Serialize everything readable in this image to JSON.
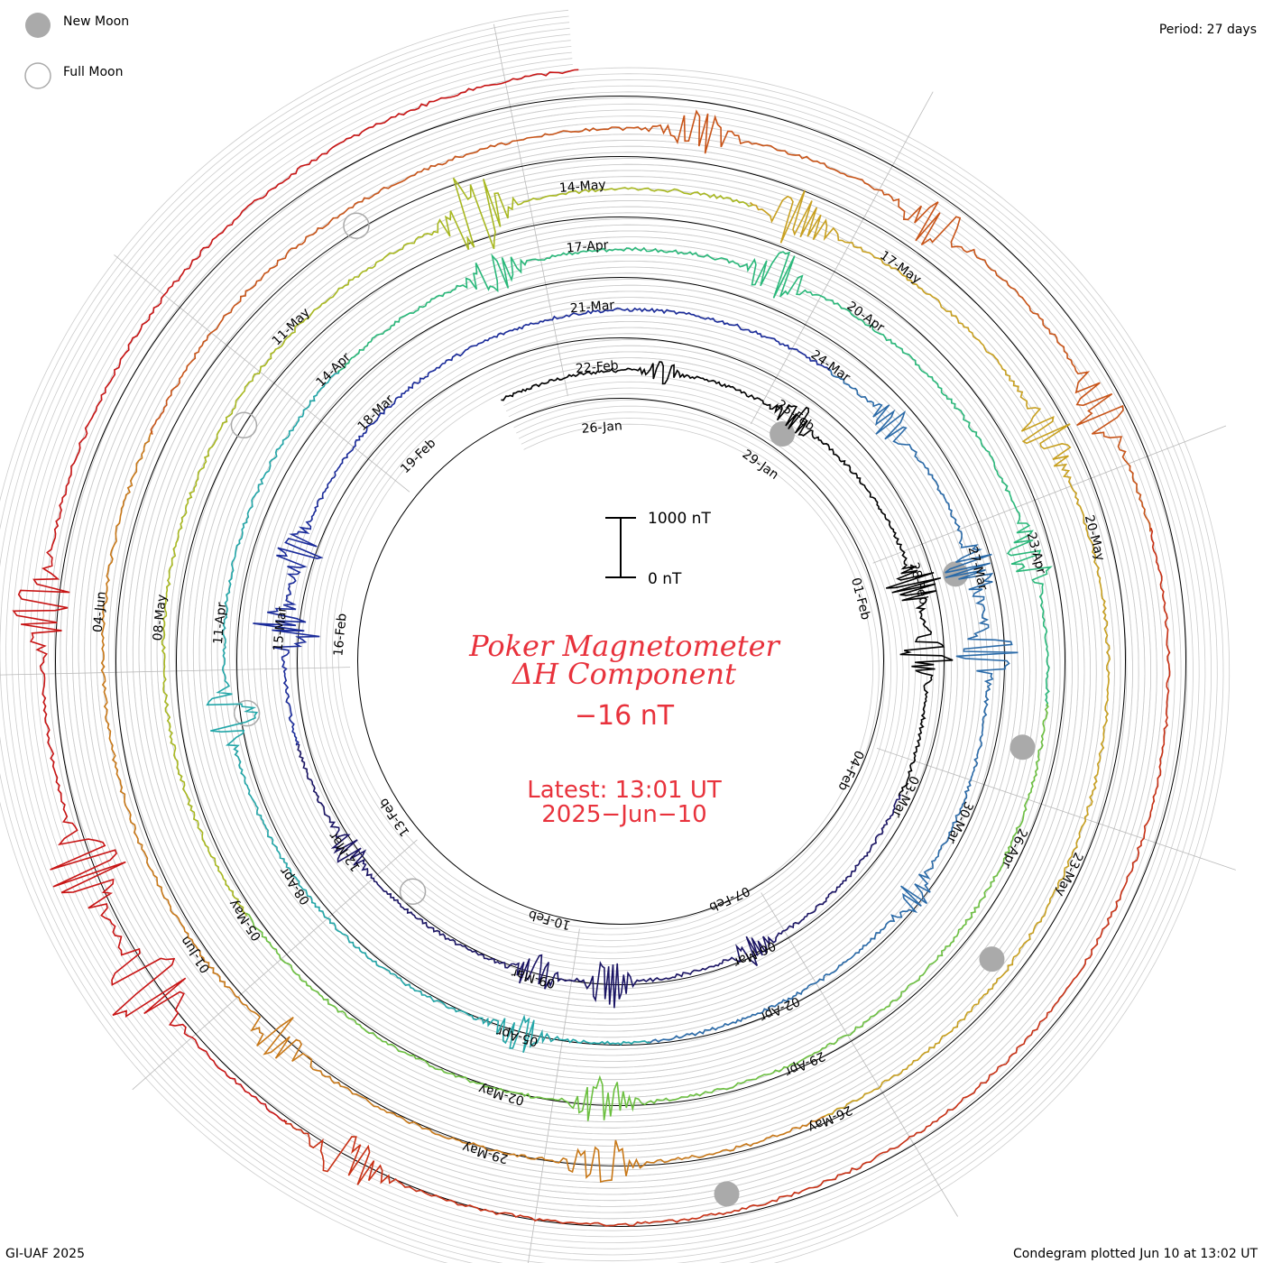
{
  "legend": {
    "new_moon_label": "New Moon",
    "full_moon_label": "Full Moon"
  },
  "period_label": "Period: 27 days",
  "footer_left": "GI-UAF 2025",
  "footer_right": "Condegram plotted Jun 10 at 13:02 UT",
  "chart_data": {
    "type": "spiral-line",
    "title_line1": "Poker Magnetometer",
    "title_line2": "ΔH Component",
    "current_value": "−16 nT",
    "latest_time": "Latest:  13:01 UT",
    "latest_date": "2025−Jun−10",
    "scale_top_label": "1000 nT",
    "scale_bottom_label": "0 nT",
    "period_days": 27,
    "start_date": "2025-01-25",
    "end_date": "2025-06-10",
    "date_labels": [
      "26-Jan",
      "29-Jan",
      "01-Feb",
      "04-Feb",
      "07-Feb",
      "10-Feb",
      "13-Feb",
      "16-Feb",
      "19-Feb",
      "22-Feb",
      "25-Feb",
      "28-Feb",
      "03-Mar",
      "06-Mar",
      "09-Mar",
      "12-Mar",
      "15-Mar",
      "18-Mar",
      "21-Mar",
      "24-Mar",
      "27-Mar",
      "30-Mar",
      "02-Apr",
      "05-Apr",
      "08-Apr",
      "11-Apr",
      "14-Apr",
      "17-Apr",
      "20-Apr",
      "23-Apr",
      "26-Apr",
      "29-Apr",
      "02-May",
      "05-May",
      "08-May",
      "11-May",
      "14-May",
      "17-May",
      "20-May",
      "23-May",
      "26-May",
      "29-May",
      "01-Jun",
      "04-Jun"
    ],
    "colors": [
      "#000000",
      "#1a1464",
      "#1a2b9a",
      "#2a6aa8",
      "#22a6a8",
      "#2ab87a",
      "#6cc040",
      "#a8b820",
      "#c8a020",
      "#c87818",
      "#c85418",
      "#c83014",
      "#c81414"
    ],
    "new_moons": [
      "2025-01-29",
      "2025-02-28",
      "2025-03-29",
      "2025-04-27",
      "2025-05-27"
    ],
    "full_moons": [
      "2025-02-12",
      "2025-03-14",
      "2025-04-13",
      "2025-05-12"
    ],
    "disturbances_nT": [
      {
        "date": "2025-01-27",
        "peak": 180
      },
      {
        "date": "2025-01-29",
        "peak": 260
      },
      {
        "date": "2025-02-01",
        "peak": 420
      },
      {
        "date": "2025-02-02",
        "peak": 380
      },
      {
        "date": "2025-02-07",
        "peak": 200
      },
      {
        "date": "2025-02-09",
        "peak": 380
      },
      {
        "date": "2025-02-10",
        "peak": 300
      },
      {
        "date": "2025-02-13",
        "peak": 220
      },
      {
        "date": "2025-02-16",
        "peak": 480
      },
      {
        "date": "2025-02-17",
        "peak": 350
      },
      {
        "date": "2025-02-26",
        "peak": 260
      },
      {
        "date": "2025-02-28",
        "peak": 400
      },
      {
        "date": "2025-03-01",
        "peak": 440
      },
      {
        "date": "2025-03-04",
        "peak": 260
      },
      {
        "date": "2025-03-09",
        "peak": 300
      },
      {
        "date": "2025-03-14",
        "peak": 380
      },
      {
        "date": "2025-03-20",
        "peak": 300
      },
      {
        "date": "2025-03-23",
        "peak": 420
      },
      {
        "date": "2025-03-27",
        "peak": 320
      },
      {
        "date": "2025-04-04",
        "peak": 380
      },
      {
        "date": "2025-04-16",
        "peak": 620
      },
      {
        "date": "2025-04-19",
        "peak": 420
      },
      {
        "date": "2025-04-22",
        "peak": 350
      },
      {
        "date": "2025-05-01",
        "peak": 380
      },
      {
        "date": "2025-05-04",
        "peak": 340
      },
      {
        "date": "2025-05-15",
        "peak": 320
      },
      {
        "date": "2025-05-17",
        "peak": 380
      },
      {
        "date": "2025-05-19",
        "peak": 420
      },
      {
        "date": "2025-05-30",
        "peak": 360
      },
      {
        "date": "2025-06-01",
        "peak": 640
      },
      {
        "date": "2025-06-02",
        "peak": 560
      },
      {
        "date": "2025-06-04",
        "peak": 420
      }
    ]
  }
}
